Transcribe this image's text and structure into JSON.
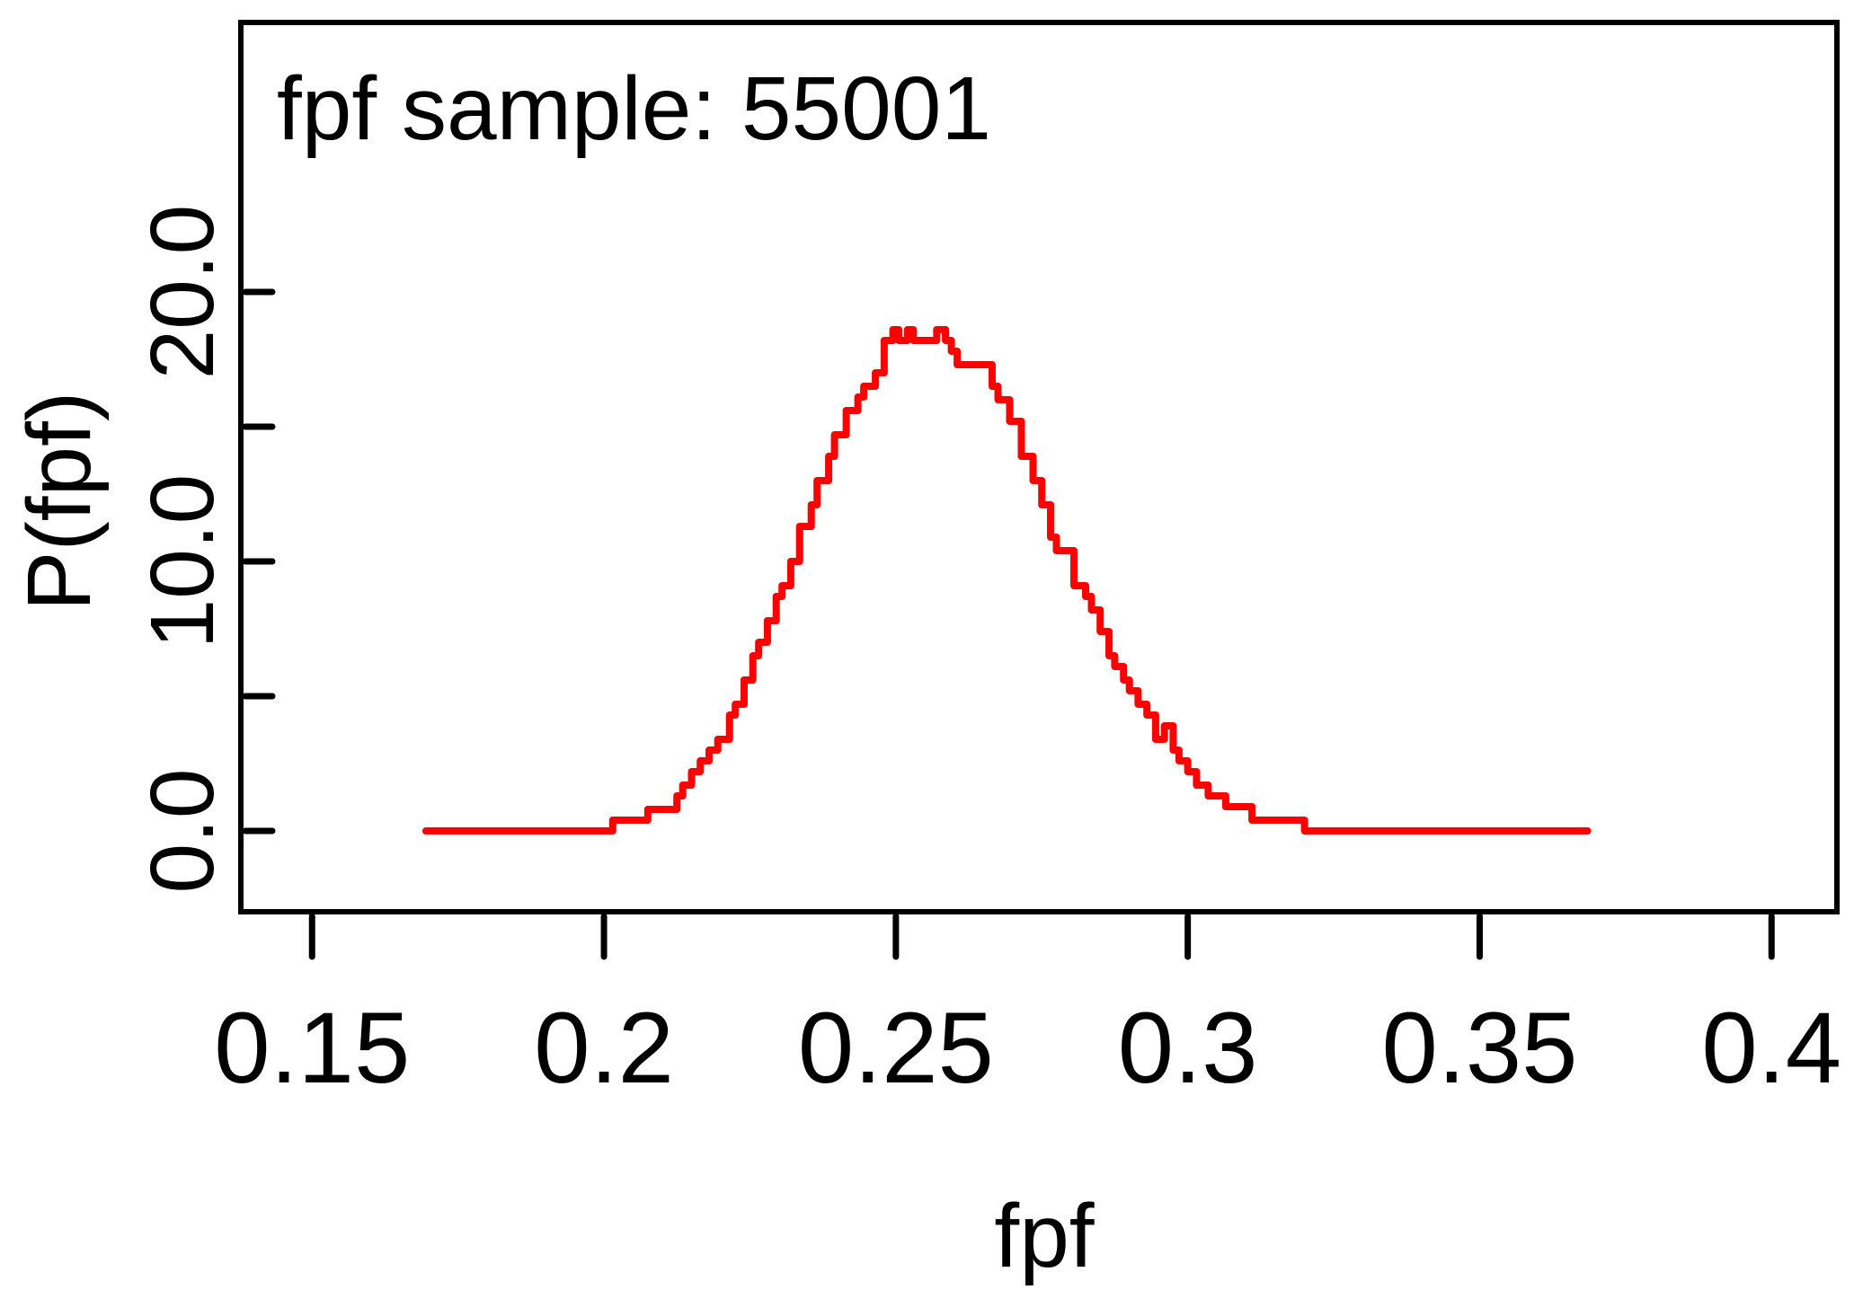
{
  "chart_data": {
    "type": "line",
    "title": "fpf sample: 55001",
    "xlabel": "fpf",
    "ylabel": "P(fpf)",
    "xlim": [
      0.1378,
      0.4112
    ],
    "ylim": [
      -3.0,
      30.0
    ],
    "x_ticks": [
      0.15,
      0.2,
      0.25,
      0.3,
      0.35,
      0.4
    ],
    "x_tick_labels": [
      "0.15",
      "0.2",
      "0.25",
      "0.3",
      "0.35",
      "0.4"
    ],
    "y_ticks": [
      0,
      5,
      10,
      15,
      20
    ],
    "y_tick_labels": [
      "0.0",
      "",
      "10.0",
      "",
      "20.0"
    ],
    "line_color": "#ff0000",
    "step": true,
    "series": [
      {
        "x": [
          0.1695,
          0.2015,
          0.2075,
          0.2105,
          0.2125,
          0.2135,
          0.215,
          0.2165,
          0.218,
          0.2195,
          0.2215,
          0.2225,
          0.224,
          0.2255,
          0.2265,
          0.228,
          0.2295,
          0.2305,
          0.232,
          0.2335,
          0.2355,
          0.2365,
          0.2385,
          0.2395,
          0.2415,
          0.2435,
          0.2445,
          0.2465,
          0.248,
          0.2495,
          0.2505,
          0.252,
          0.253,
          0.2545,
          0.256,
          0.257,
          0.2585,
          0.2595,
          0.2605,
          0.265,
          0.2665,
          0.2675,
          0.2695,
          0.2715,
          0.2735,
          0.275,
          0.2765,
          0.2775,
          0.2805,
          0.2825,
          0.2835,
          0.285,
          0.2865,
          0.2875,
          0.289,
          0.29,
          0.2915,
          0.293,
          0.2945,
          0.296,
          0.2975,
          0.2985,
          0.3,
          0.3015,
          0.3035,
          0.305,
          0.3065,
          0.3085,
          0.311,
          0.3135,
          0.3165,
          0.32,
          0.3685
        ],
        "y": [
          0.0,
          0.4,
          0.8,
          0.8,
          1.3,
          1.7,
          2.2,
          2.6,
          3.0,
          3.4,
          4.3,
          4.7,
          5.6,
          6.5,
          7.0,
          7.8,
          8.7,
          9.1,
          10.0,
          11.3,
          12.1,
          13.0,
          13.9,
          14.7,
          15.6,
          16.1,
          16.5,
          17.0,
          18.2,
          18.6,
          18.2,
          18.6,
          18.2,
          18.2,
          18.2,
          18.6,
          18.2,
          17.8,
          17.3,
          17.3,
          16.5,
          16.0,
          15.2,
          13.9,
          13.0,
          12.1,
          10.9,
          10.4,
          9.1,
          8.7,
          8.2,
          7.4,
          6.5,
          6.1,
          5.6,
          5.2,
          4.7,
          4.3,
          3.4,
          3.9,
          3.0,
          2.6,
          2.2,
          1.7,
          1.3,
          1.3,
          0.9,
          0.9,
          0.4,
          0.4,
          0.4,
          0.0,
          0.0
        ]
      }
    ]
  }
}
